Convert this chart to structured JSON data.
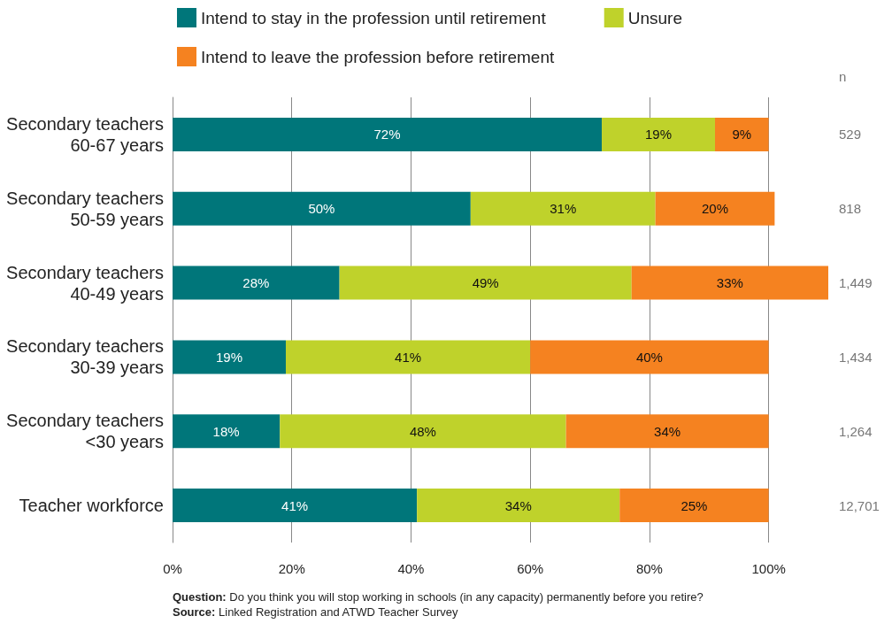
{
  "chart_data": {
    "type": "bar",
    "orientation": "horizontal",
    "stacked": true,
    "categories": [
      "Secondary teachers\n60-67 years",
      "Secondary teachers\n50-59 years",
      "Secondary teachers\n40-49 years",
      "Secondary teachers\n30-39 years",
      "Secondary teachers\n<30 years",
      "Teacher workforce"
    ],
    "series": [
      {
        "name": "Intend to stay in the profession until retirement",
        "color": "#00767a",
        "values": [
          72,
          50,
          28,
          19,
          18,
          41
        ],
        "value_labels": [
          "72%",
          "50%",
          "28%",
          "19%",
          "18%",
          "41%"
        ]
      },
      {
        "name": "Unsure",
        "color": "#bfd22b",
        "values": [
          19,
          31,
          49,
          41,
          48,
          34
        ],
        "value_labels": [
          "19%",
          "31%",
          "49%",
          "41%",
          "48%",
          "34%"
        ]
      },
      {
        "name": "Intend to leave the profession before retirement",
        "color": "#f58220",
        "values": [
          9,
          20,
          33,
          40,
          34,
          25
        ],
        "value_labels": [
          "9%",
          "20%",
          "33%",
          "40%",
          "34%",
          "25%"
        ]
      }
    ],
    "xlim": [
      0,
      110
    ],
    "xticks": [
      {
        "value": 0,
        "label": "0%"
      },
      {
        "value": 20,
        "label": "20%"
      },
      {
        "value": 40,
        "label": "40%"
      },
      {
        "value": 60,
        "label": "60%"
      },
      {
        "value": 80,
        "label": "80%"
      },
      {
        "value": 100,
        "label": "100%"
      }
    ],
    "grid": "x",
    "legend": "top left",
    "annotations": [
      "n",
      "529",
      "818",
      "1,449",
      "1,434",
      "1,264",
      "12,701",
      "Question: Do you think you will stop working in schools (in any capacity) permanently before you retire?",
      "Source: Linked Registration and ATWD Teacher Survey"
    ]
  }
}
